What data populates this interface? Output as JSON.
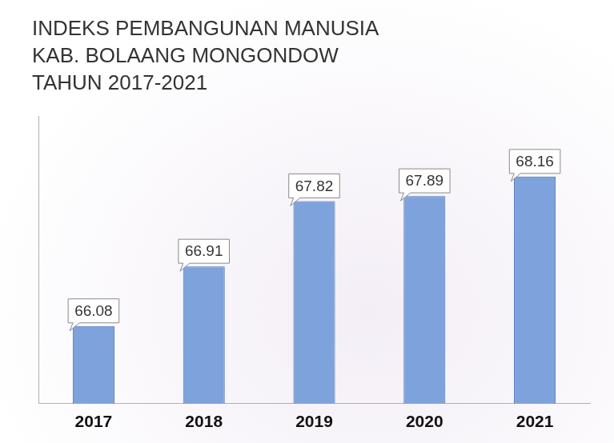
{
  "chart_data": {
    "type": "bar",
    "title": "INDEKS PEMBANGUNAN MANUSIA KAB. BOLAANG MONGONDOW TAHUN 2017-2021",
    "categories": [
      "2017",
      "2018",
      "2019",
      "2020",
      "2021"
    ],
    "values": [
      66.08,
      66.91,
      67.82,
      67.89,
      68.16
    ],
    "color": "#7ea3dc",
    "ylim": [
      65,
      69
    ],
    "grid": false,
    "data_labels": true,
    "tick_labels": "x"
  }
}
